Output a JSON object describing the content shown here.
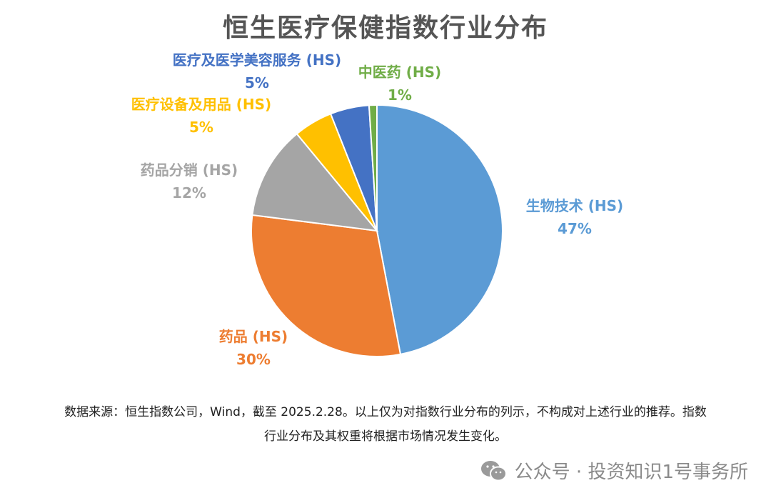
{
  "chart_data": {
    "type": "pie",
    "title": "恒生医疗保健指数行业分布",
    "slices": [
      {
        "label": "生物技术 (HS)",
        "percent_label": "47%",
        "value": 47,
        "color": "#5b9bd5"
      },
      {
        "label": "药品 (HS)",
        "percent_label": "30%",
        "value": 30,
        "color": "#ed7d31"
      },
      {
        "label": "药品分销 (HS)",
        "percent_label": "12%",
        "value": 12,
        "color": "#a5a5a5"
      },
      {
        "label": "医疗设备及用品 (HS)",
        "percent_label": "5%",
        "value": 5,
        "color": "#ffc000"
      },
      {
        "label": "医疗及医学美容服务 (HS)",
        "percent_label": "5%",
        "value": 5,
        "color": "#4472c4"
      },
      {
        "label": "中医药 (HS)",
        "percent_label": "1%",
        "value": 1,
        "color": "#70ad47"
      }
    ]
  },
  "footnote": {
    "line1": "数据来源：恒生指数公司，Wind，截至 2025.2.28。以上仅为对指数行业分布的列示，不构成对上述行业的推荐。指数",
    "line2": "行业分布及其权重将根据市场情况发生变化。"
  },
  "watermark": {
    "text": "公众号 · 投资知识1号事务所",
    "icon": "wechat-icon"
  }
}
